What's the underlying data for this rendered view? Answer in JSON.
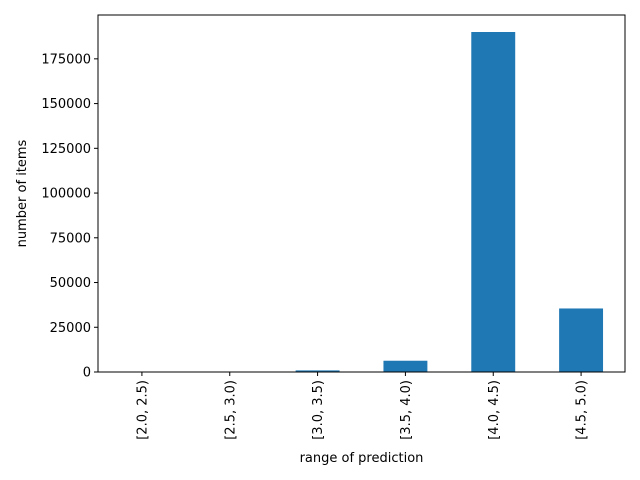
{
  "chart_data": {
    "type": "bar",
    "title": "",
    "xlabel": "range of prediction",
    "ylabel": "number of items",
    "categories": [
      "[2.0, 2.5)",
      "[2.5, 3.0)",
      "[3.0, 3.5)",
      "[3.5, 4.0)",
      "[4.0, 4.5)",
      "[4.5, 5.0)"
    ],
    "values": [
      50,
      120,
      900,
      6300,
      190000,
      35500
    ],
    "ylim": [
      0,
      199500
    ],
    "yticks": [
      0,
      25000,
      50000,
      75000,
      100000,
      125000,
      150000,
      175000
    ],
    "bar_color": "#1f77b4",
    "grid": false,
    "legend": "none"
  }
}
